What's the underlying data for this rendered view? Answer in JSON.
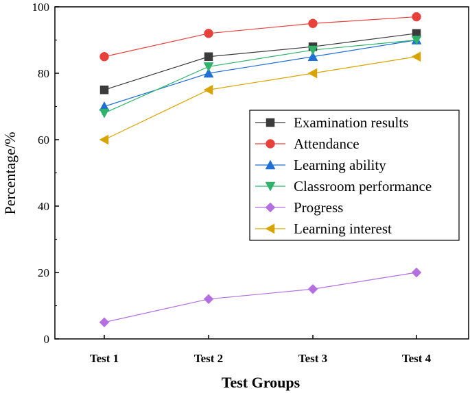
{
  "chart_data": {
    "type": "line",
    "title": "",
    "xlabel": "Test Groups",
    "ylabel": "Percentage/%",
    "categories": [
      "Test 1",
      "Test 2",
      "Test 3",
      "Test 4"
    ],
    "ylim": [
      0,
      100
    ],
    "yticks": [
      0,
      20,
      40,
      60,
      80,
      100
    ],
    "grid": false,
    "legend_position": "right-center",
    "series": [
      {
        "name": "Examination results",
        "values": [
          75,
          85,
          88,
          92
        ],
        "color": "#3b3b3b",
        "marker": "square"
      },
      {
        "name": "Attendance",
        "values": [
          85,
          92,
          95,
          97
        ],
        "color": "#e8413c",
        "marker": "circle"
      },
      {
        "name": "Learning ability",
        "values": [
          70,
          80,
          85,
          90
        ],
        "color": "#1f6fd6",
        "marker": "triangle-up"
      },
      {
        "name": "Classroom performance",
        "values": [
          68,
          82,
          87,
          90
        ],
        "color": "#2fb36b",
        "marker": "triangle-down"
      },
      {
        "name": "Progress",
        "values": [
          5,
          12,
          15,
          20
        ],
        "color": "#b46fe0",
        "marker": "diamond"
      },
      {
        "name": "Learning interest",
        "values": [
          60,
          75,
          80,
          85
        ],
        "color": "#d8a400",
        "marker": "triangle-left"
      }
    ]
  }
}
